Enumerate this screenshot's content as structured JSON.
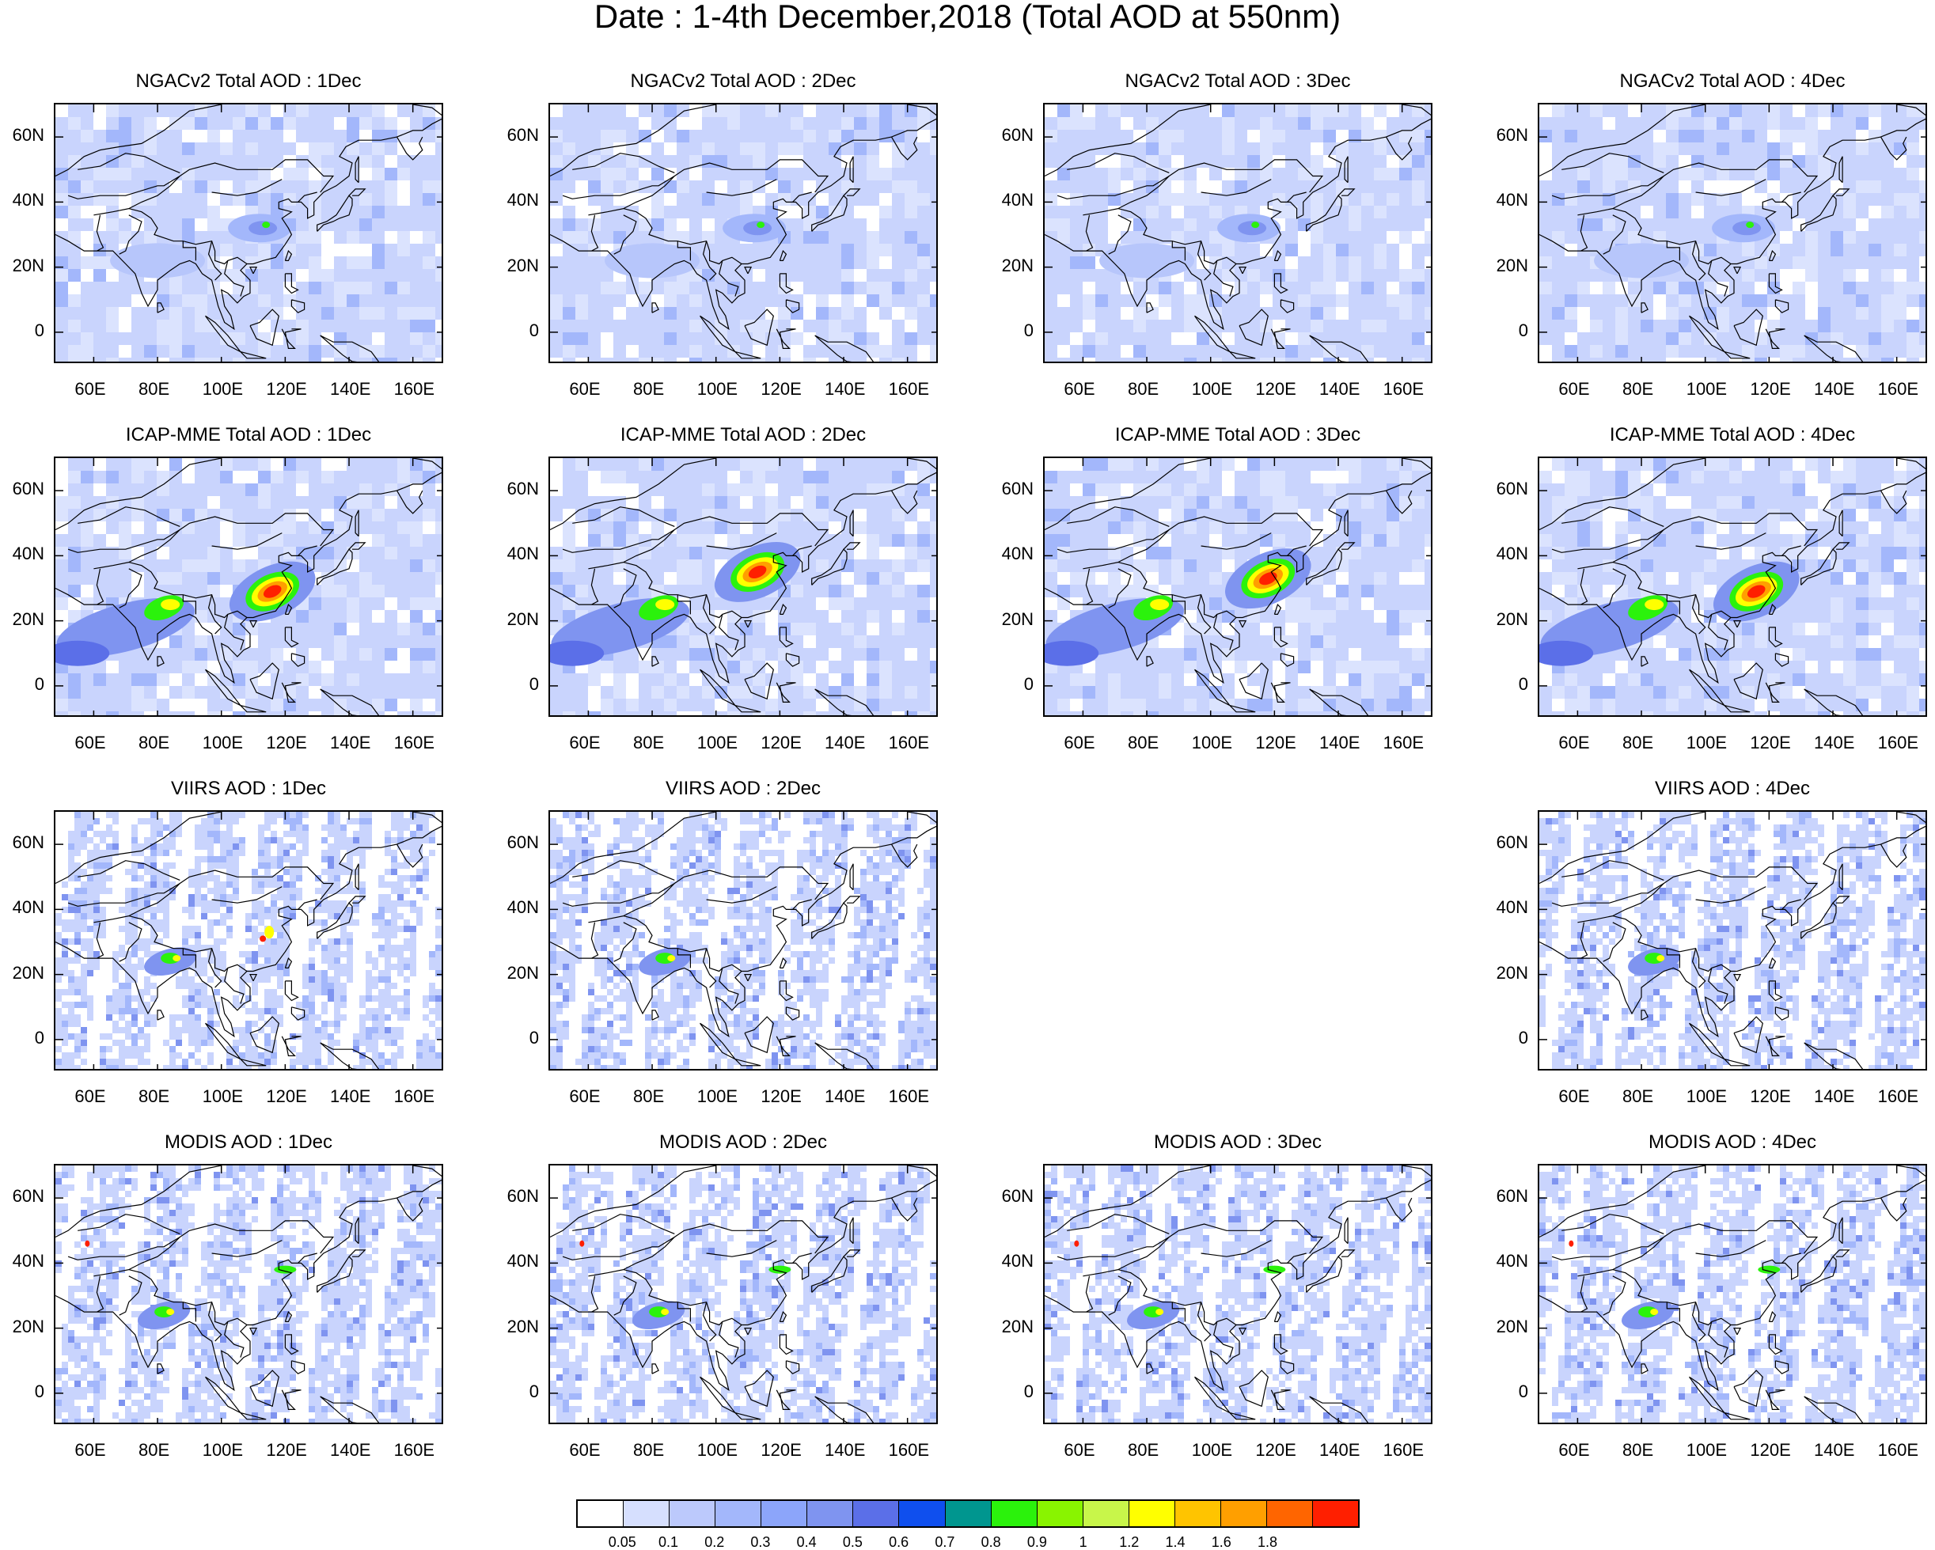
{
  "title": "Date : 1-4th December,2018 (Total AOD at 550nm)",
  "x_tick_labels": [
    "60E",
    "80E",
    "100E",
    "120E",
    "140E",
    "160E"
  ],
  "y_tick_labels": [
    "60N",
    "40N",
    "20N",
    "0"
  ],
  "colorbar": {
    "labels": [
      "0.05",
      "0.1",
      "0.2",
      "0.3",
      "0.4",
      "0.5",
      "0.6",
      "0.7",
      "0.8",
      "0.9",
      "1",
      "1.2",
      "1.4",
      "1.6",
      "1.8"
    ],
    "colors": [
      "#ffffff",
      "#d6dffe",
      "#bcc9fc",
      "#a3b7fb",
      "#8ca5fa",
      "#7f94f0",
      "#5b6fe8",
      "#0f4fee",
      "#00968f",
      "#2bf20c",
      "#89f400",
      "#c8f64a",
      "#ffff00",
      "#ffc400",
      "#ff9f00",
      "#ff6500",
      "#ff1f00"
    ]
  },
  "map": {
    "lon_range": [
      48,
      170
    ],
    "lat_range": [
      -10,
      70
    ],
    "colors": {
      "background_aod": "#c9d4fd",
      "moderate_aod": "#a3b7fb",
      "high_aod": "#7f94f0",
      "very_high_aod": "#5b6fe8",
      "green": "#2bf20c",
      "yellow": "#ffff00",
      "orange": "#ff9f00",
      "red": "#ff1f00",
      "coastline": "#000000"
    }
  },
  "panels": [
    {
      "row": 0,
      "col": 0,
      "title": "NGACv2 Total AOD : 1Dec",
      "intensity": 0.3
    },
    {
      "row": 0,
      "col": 1,
      "title": "NGACv2 Total AOD : 2Dec",
      "intensity": 0.3
    },
    {
      "row": 0,
      "col": 2,
      "title": "NGACv2 Total AOD : 3Dec",
      "intensity": 0.25
    },
    {
      "row": 0,
      "col": 3,
      "title": "NGACv2 Total AOD : 4Dec",
      "intensity": 0.35
    },
    {
      "row": 1,
      "col": 0,
      "title": "ICAP-MME Total AOD : 1Dec",
      "intensity": 1.0
    },
    {
      "row": 1,
      "col": 1,
      "title": "ICAP-MME Total AOD : 2Dec",
      "intensity": 1.0
    },
    {
      "row": 1,
      "col": 2,
      "title": "ICAP-MME Total AOD : 3Dec",
      "intensity": 1.0
    },
    {
      "row": 1,
      "col": 3,
      "title": "ICAP-MME Total AOD : 4Dec",
      "intensity": 0.9
    },
    {
      "row": 2,
      "col": 0,
      "title": "VIIRS AOD : 1Dec",
      "intensity": 0.7
    },
    {
      "row": 2,
      "col": 1,
      "title": "VIIRS AOD : 2Dec",
      "intensity": 0.6
    },
    {
      "row": 2,
      "col": 3,
      "title": "VIIRS AOD : 4Dec",
      "intensity": 0.55
    },
    {
      "row": 3,
      "col": 0,
      "title": "MODIS AOD : 1Dec",
      "intensity": 0.5
    },
    {
      "row": 3,
      "col": 1,
      "title": "MODIS AOD : 2Dec",
      "intensity": 0.6
    },
    {
      "row": 3,
      "col": 2,
      "title": "MODIS AOD : 3Dec",
      "intensity": 0.55
    },
    {
      "row": 3,
      "col": 3,
      "title": "MODIS AOD : 4Dec",
      "intensity": 0.5
    }
  ]
}
